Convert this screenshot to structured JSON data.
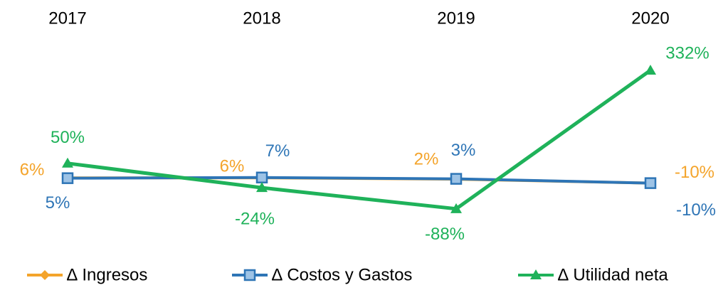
{
  "chart_data": {
    "type": "line",
    "categories": [
      "2017",
      "2018",
      "2019",
      "2020"
    ],
    "ylim": [
      -150,
      350
    ],
    "series": [
      {
        "name": "∆ Ingresos",
        "color": "#f4a42b",
        "values": [
          6,
          6,
          2,
          -10
        ],
        "value_labels": [
          "6%",
          "6%",
          "2%",
          "-10%"
        ]
      },
      {
        "name": "∆ Costos y Gastos",
        "color": "#2e75b6",
        "values": [
          5,
          7,
          3,
          -10
        ],
        "value_labels": [
          "5%",
          "7%",
          "3%",
          "-10%"
        ]
      },
      {
        "name": "∆ Utilidad neta",
        "color": "#1fb25a",
        "values": [
          50,
          -24,
          -88,
          332
        ],
        "value_labels": [
          "50%",
          "-24%",
          "-88%",
          "332%"
        ]
      }
    ]
  }
}
